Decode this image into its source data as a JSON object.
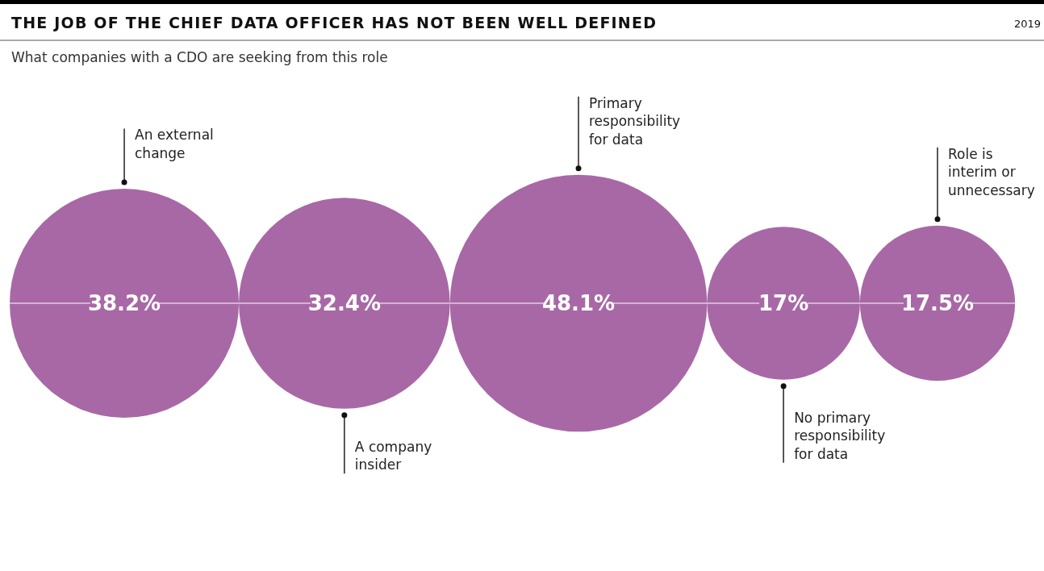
{
  "chart_data": {
    "type": "other",
    "title": "THE JOB OF THE CHIEF DATA OFFICER HAS NOT BEEN WELL DEFINED",
    "subtitle": "What companies with a CDO are seeking from this role",
    "annotations": [
      "2019"
    ],
    "categories": [
      "An external change",
      "A company insider",
      "Primary responsibility for data",
      "No primary responsibility for data",
      "Role is interim or unnecessary"
    ],
    "values": [
      38.2,
      32.4,
      48.1,
      17,
      17.5
    ],
    "value_labels": [
      "38.2%",
      "32.4%",
      "48.1%",
      "17%",
      "17.5%"
    ],
    "color": "#a868a6"
  }
}
